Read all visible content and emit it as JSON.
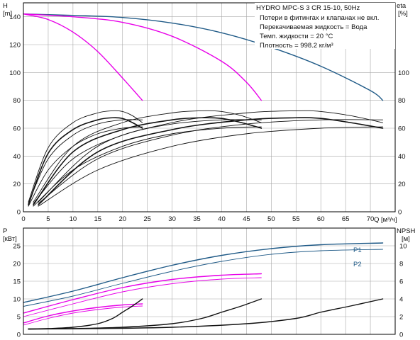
{
  "chart_data": [
    {
      "type": "line",
      "title": "HYDRO MPC-S 3 CR 15-10, 50Hz",
      "ylabel_left": "H",
      "ylabel_left_unit": "[m]",
      "ylabel_right": "eta",
      "ylabel_right_unit": "[%]",
      "xlabel": "Q",
      "xlabel_unit": "[м³/ч]",
      "xlim": [
        0,
        75
      ],
      "ylim_left": [
        0,
        150
      ],
      "ylim_right": [
        0,
        150
      ],
      "xticks": [
        "0",
        "5",
        "10",
        "15",
        "20",
        "25",
        "30",
        "35",
        "40",
        "45",
        "50",
        "55",
        "60",
        "65",
        "70"
      ],
      "yticks_left": [
        "0",
        "20",
        "40",
        "60",
        "80",
        "100",
        "120",
        "140"
      ],
      "yticks_right": [
        "0",
        "20",
        "40",
        "60",
        "80",
        "100"
      ],
      "grid": true,
      "info_lines": [
        "Потери в фитингах и клапанах не вкл.",
        "Перекачиваемая жидкость = Вода",
        "Темп. жидкости = 20 °C",
        "Плотность = 998.2 кг/м³"
      ],
      "series": [
        {
          "axis": "left",
          "color": "#1f5a87",
          "width": 1.4,
          "x": [
            0,
            10,
            20,
            30,
            40,
            50,
            60,
            70,
            72.5
          ],
          "values": [
            142,
            141,
            139.5,
            135.5,
            128.5,
            118,
            104.5,
            87,
            80
          ]
        },
        {
          "axis": "left",
          "color": "#e800e8",
          "width": 1.4,
          "x": [
            0,
            10,
            20,
            30,
            40,
            45,
            48
          ],
          "values": [
            142,
            140,
            136,
            126,
            108,
            93,
            80
          ]
        },
        {
          "axis": "left",
          "color": "#e800e8",
          "width": 1.4,
          "x": [
            0,
            5,
            10,
            15,
            20,
            24
          ],
          "values": [
            142,
            138,
            129,
            115,
            96,
            80
          ]
        },
        {
          "axis": "right",
          "color": "#111111",
          "width": 1.6,
          "x": [
            1,
            5,
            10,
            15,
            18,
            20,
            22,
            24
          ],
          "values": [
            5,
            42,
            59,
            66,
            67.5,
            67,
            64,
            60
          ]
        },
        {
          "axis": "right",
          "color": "#111111",
          "width": 0.9,
          "x": [
            1,
            5,
            10,
            15,
            18,
            20,
            22,
            24
          ],
          "values": [
            7,
            46,
            64,
            71,
            72.5,
            72,
            69,
            64
          ]
        },
        {
          "axis": "right",
          "color": "#111111",
          "width": 0.9,
          "x": [
            1,
            5,
            10,
            15,
            20,
            24
          ],
          "values": [
            4,
            30,
            47,
            56,
            60,
            61
          ]
        },
        {
          "axis": "right",
          "color": "#111111",
          "width": 0.9,
          "x": [
            1,
            5,
            10,
            15,
            20,
            24
          ],
          "values": [
            6,
            38,
            55,
            63,
            66,
            66
          ]
        },
        {
          "axis": "right",
          "color": "#111111",
          "width": 1.6,
          "x": [
            2,
            10,
            20,
            30,
            36,
            40,
            44,
            48
          ],
          "values": [
            5,
            43,
            59,
            66,
            67.5,
            67,
            64,
            60
          ]
        },
        {
          "axis": "right",
          "color": "#111111",
          "width": 0.9,
          "x": [
            2,
            10,
            20,
            30,
            36,
            40,
            44,
            48
          ],
          "values": [
            7,
            47,
            64,
            71,
            72.5,
            72,
            69,
            64
          ]
        },
        {
          "axis": "right",
          "color": "#111111",
          "width": 0.9,
          "x": [
            2,
            10,
            20,
            30,
            40,
            48
          ],
          "values": [
            4,
            30,
            47,
            56,
            60,
            61
          ]
        },
        {
          "axis": "right",
          "color": "#111111",
          "width": 0.9,
          "x": [
            2,
            10,
            20,
            30,
            40,
            48
          ],
          "values": [
            6,
            38,
            55,
            63,
            66,
            66
          ]
        },
        {
          "axis": "right",
          "color": "#111111",
          "width": 1.6,
          "x": [
            3,
            15,
            30,
            45,
            55,
            60,
            66,
            72.5
          ],
          "values": [
            5,
            43,
            59,
            66,
            67.5,
            67,
            64,
            60
          ]
        },
        {
          "axis": "right",
          "color": "#111111",
          "width": 0.9,
          "x": [
            3,
            15,
            30,
            45,
            55,
            60,
            66,
            72.5
          ],
          "values": [
            7,
            47,
            64,
            71,
            72.5,
            72,
            69,
            64
          ]
        },
        {
          "axis": "right",
          "color": "#111111",
          "width": 0.9,
          "x": [
            3,
            15,
            30,
            45,
            60,
            72.5
          ],
          "values": [
            4,
            30,
            47,
            56,
            60,
            61
          ]
        },
        {
          "axis": "right",
          "color": "#111111",
          "width": 0.9,
          "x": [
            3,
            15,
            30,
            45,
            60,
            72.5
          ],
          "values": [
            6,
            38,
            55,
            63,
            66,
            66
          ]
        }
      ]
    },
    {
      "type": "line",
      "ylabel_left": "P",
      "ylabel_left_unit": "[кВт]",
      "ylabel_right": "NPSH",
      "ylabel_right_unit": "[м]",
      "xlim": [
        0,
        75
      ],
      "ylim_left": [
        0,
        30
      ],
      "ylim_right": [
        0,
        12
      ],
      "yticks_left": [
        "0",
        "5",
        "10",
        "15",
        "20",
        "25"
      ],
      "yticks_right": [
        "0",
        "2",
        "4",
        "6",
        "8",
        "10"
      ],
      "grid": true,
      "series": [
        {
          "name": "P1",
          "axis": "left",
          "color": "#1f5a87",
          "width": 1.4,
          "x": [
            0,
            10,
            20,
            30,
            40,
            50,
            60,
            72.5
          ],
          "values": [
            9,
            12.2,
            16,
            19.5,
            22.3,
            24.2,
            25.3,
            25.8
          ]
        },
        {
          "name": "P2",
          "axis": "left",
          "color": "#1f5a87",
          "width": 0.9,
          "x": [
            0,
            10,
            20,
            30,
            40,
            50,
            60,
            72.5
          ],
          "values": [
            7.9,
            10.8,
            14.4,
            17.8,
            20.6,
            22.6,
            23.6,
            24
          ]
        },
        {
          "axis": "left",
          "color": "#e800e8",
          "width": 1.4,
          "x": [
            0,
            10,
            20,
            30,
            40,
            48
          ],
          "values": [
            6,
            9.8,
            13.2,
            15.5,
            16.7,
            17.1
          ]
        },
        {
          "axis": "left",
          "color": "#e800e8",
          "width": 0.9,
          "x": [
            0,
            10,
            20,
            30,
            40,
            48
          ],
          "values": [
            5,
            8.6,
            12,
            14.3,
            15.6,
            16
          ]
        },
        {
          "axis": "left",
          "color": "#e800e8",
          "width": 1.4,
          "x": [
            0,
            5,
            10,
            15,
            20,
            24
          ],
          "values": [
            3.2,
            5.2,
            6.6,
            7.6,
            8.3,
            8.6
          ]
        },
        {
          "axis": "left",
          "color": "#e800e8",
          "width": 0.9,
          "x": [
            0,
            5,
            10,
            15,
            20,
            24
          ],
          "values": [
            2.6,
            4.5,
            6,
            7,
            7.7,
            8
          ]
        },
        {
          "axis": "right",
          "color": "#111111",
          "width": 1.4,
          "x": [
            1,
            5,
            10,
            15,
            18,
            20,
            22,
            24
          ],
          "values": [
            0.6,
            0.65,
            0.8,
            1.2,
            1.8,
            2.5,
            3.2,
            4
          ]
        },
        {
          "axis": "right",
          "color": "#111111",
          "width": 1.4,
          "x": [
            1,
            10,
            20,
            30,
            36,
            40,
            44,
            48
          ],
          "values": [
            0.6,
            0.65,
            0.8,
            1.2,
            1.8,
            2.5,
            3.2,
            4
          ]
        },
        {
          "axis": "right",
          "color": "#111111",
          "width": 1.4,
          "x": [
            1,
            15,
            30,
            45,
            55,
            60,
            66,
            72.5
          ],
          "values": [
            0.6,
            0.65,
            0.8,
            1.2,
            1.8,
            2.5,
            3.2,
            4
          ]
        }
      ]
    }
  ]
}
